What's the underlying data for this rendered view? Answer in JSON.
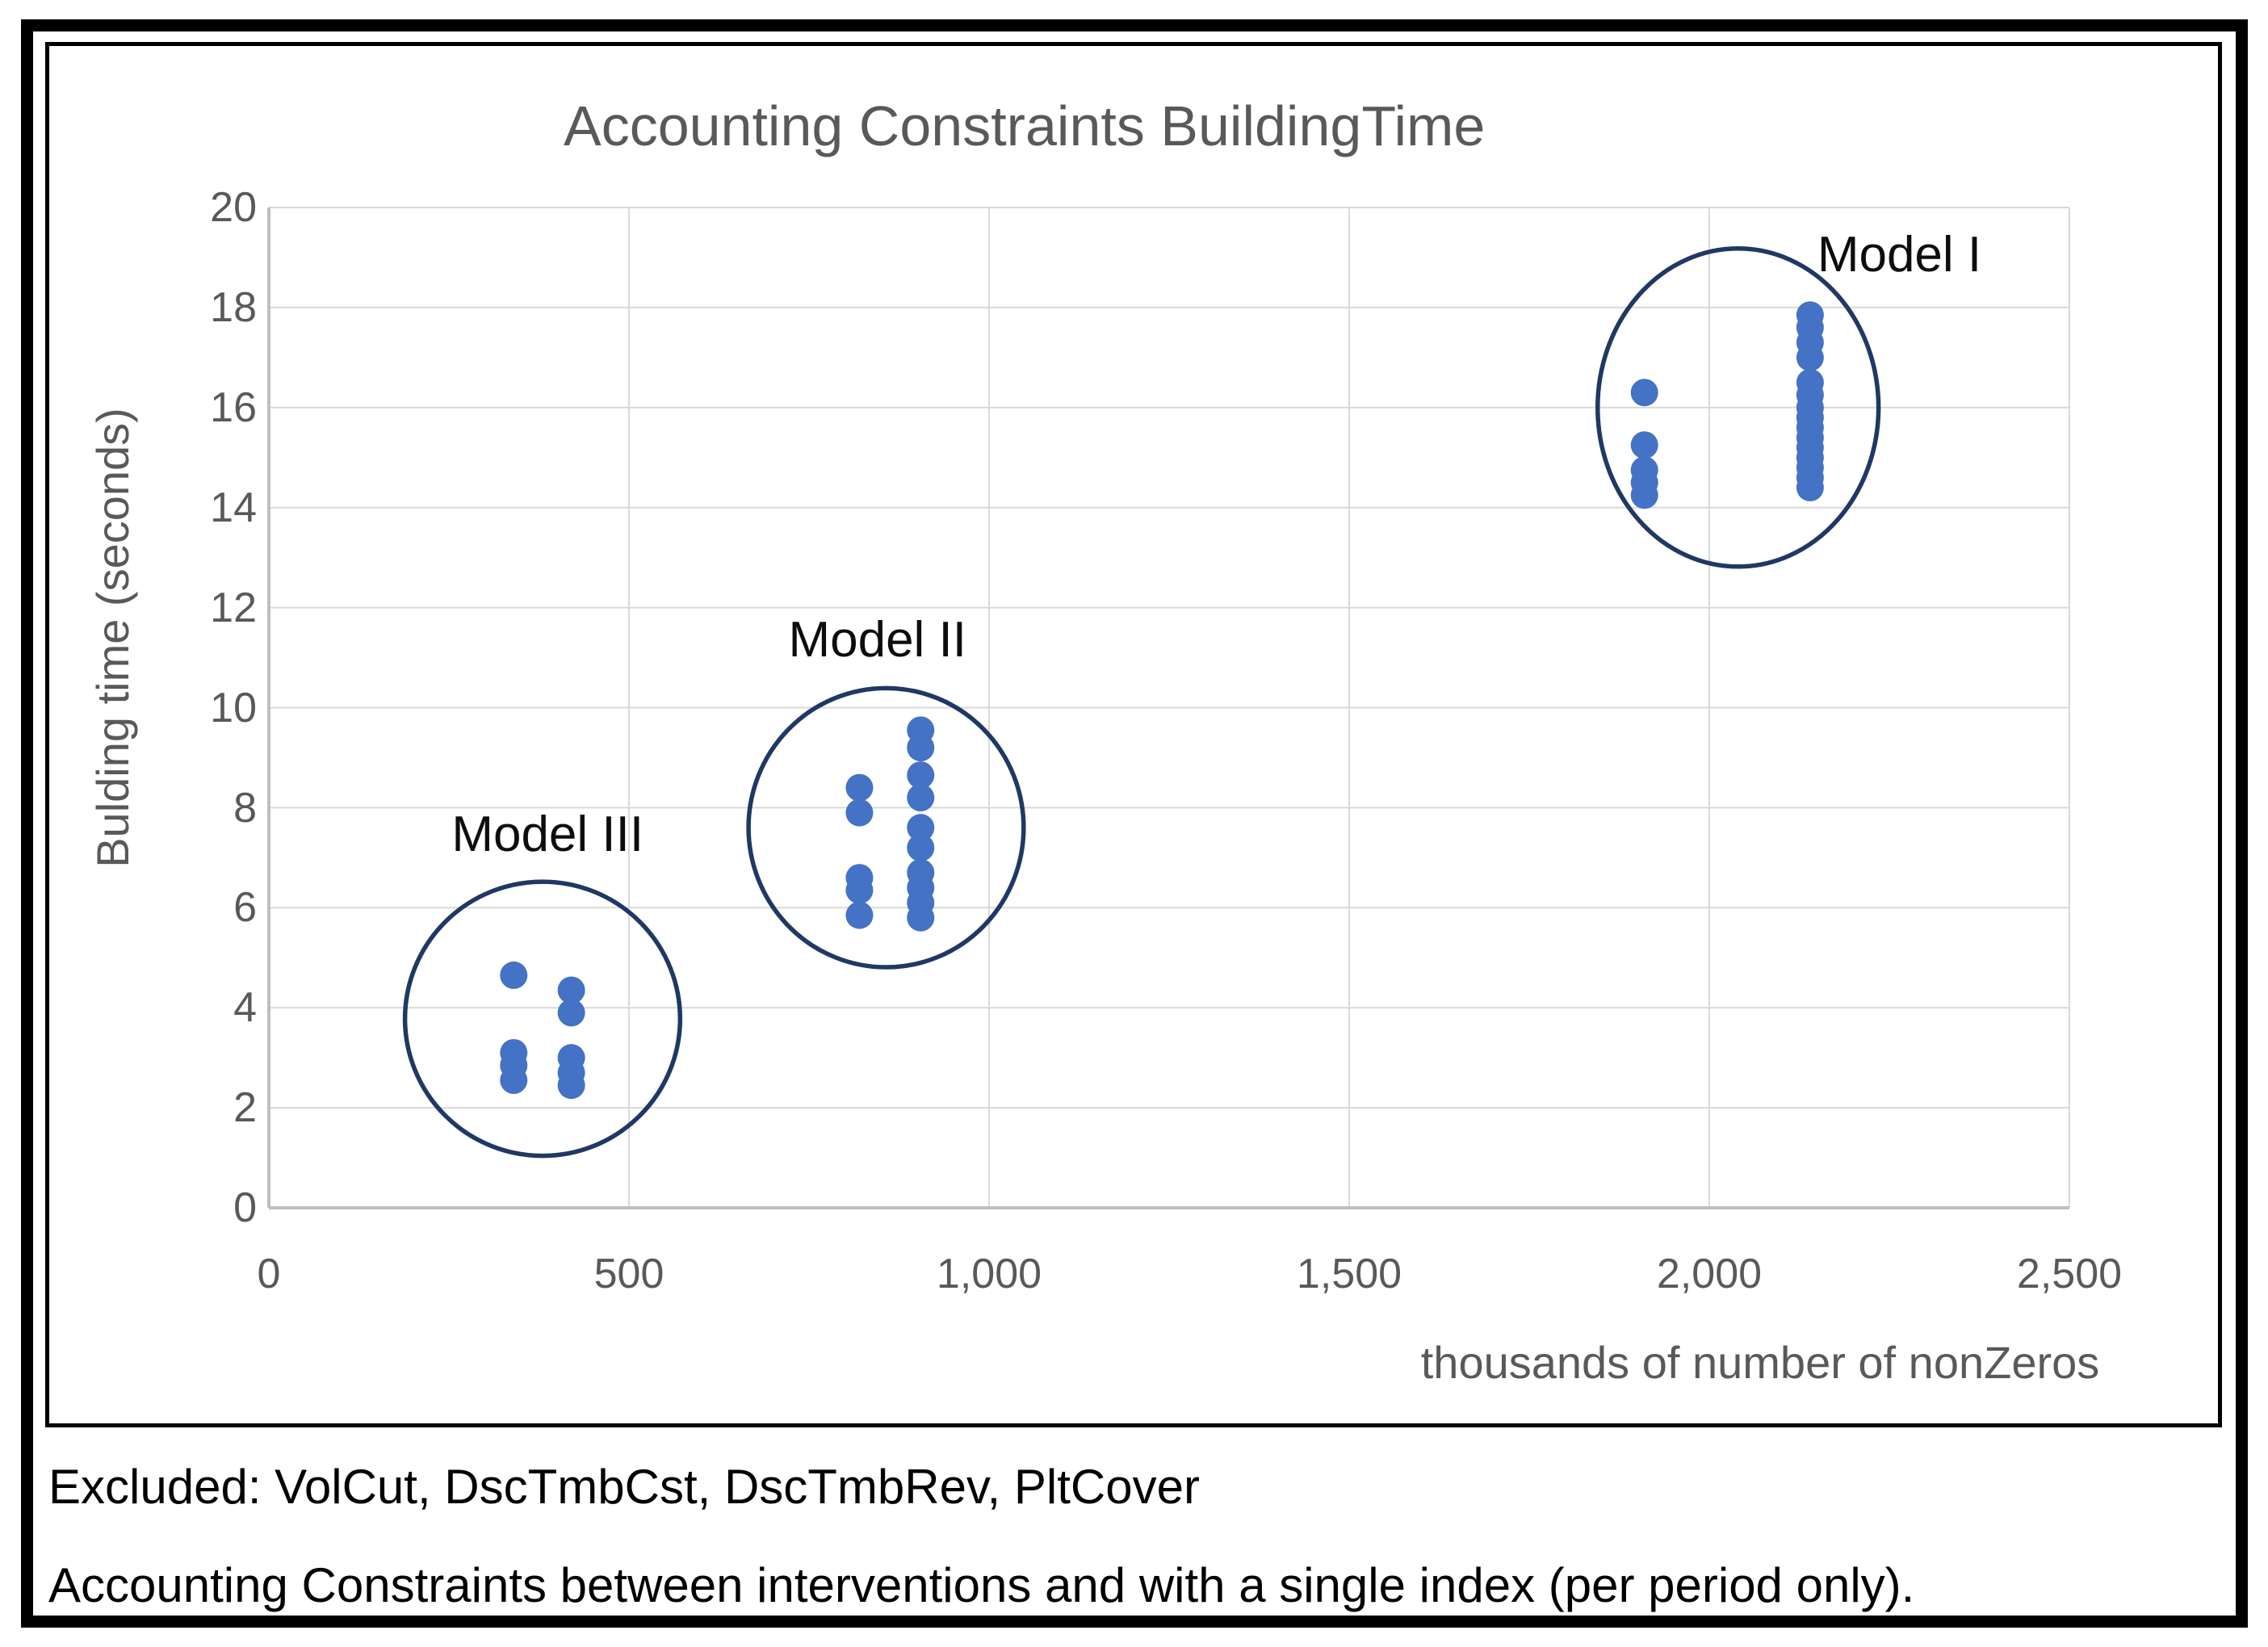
{
  "captions": {
    "line1": "Excluded: VolCut, DscTmbCst, DscTmbRev, PltCover",
    "line2": "Accounting Constraints between interventions and with a single index (per period only)."
  },
  "chart_data": {
    "type": "scatter",
    "title": "Accounting Constraints BuildingTime",
    "xlabel": "thousands of number of nonZeros",
    "ylabel": "Bulding time (seconds)",
    "xlim": [
      0,
      2500
    ],
    "ylim": [
      0,
      20
    ],
    "grid": true,
    "legend": "none",
    "xticks": [
      0,
      500,
      1000,
      1500,
      2000,
      2500
    ],
    "xtick_labels": [
      "0",
      "500",
      "1,000",
      "1,500",
      "2,000",
      "2,500"
    ],
    "yticks": [
      20,
      18,
      16,
      14,
      12,
      10,
      8,
      6,
      4,
      2,
      0
    ],
    "ytick_labels": [
      "20",
      "18",
      "16",
      "14",
      "12",
      "10",
      "8",
      "6",
      "4",
      "2",
      "0"
    ],
    "colors": {
      "point": "#4472C4",
      "annotation_circle": "#1F3864",
      "gridline": "#D9D9D9",
      "axis_line": "#BFBFBF",
      "title_text": "#595959",
      "label_text": "#0d0d0d"
    },
    "series": [
      {
        "name": "Model I",
        "points": [
          [
            1910,
            16.3
          ],
          [
            1910,
            15.25
          ],
          [
            1910,
            14.75
          ],
          [
            1910,
            14.5
          ],
          [
            1910,
            14.25
          ],
          [
            2140,
            17.85
          ],
          [
            2140,
            17.6
          ],
          [
            2140,
            17.3
          ],
          [
            2140,
            17.0
          ],
          [
            2140,
            16.5
          ],
          [
            2140,
            16.25
          ],
          [
            2140,
            16.0
          ],
          [
            2140,
            15.8
          ],
          [
            2140,
            15.6
          ],
          [
            2140,
            15.4
          ],
          [
            2140,
            15.2
          ],
          [
            2140,
            15.0
          ],
          [
            2140,
            14.8
          ],
          [
            2140,
            14.6
          ],
          [
            2140,
            14.4
          ]
        ]
      },
      {
        "name": "Model II",
        "points": [
          [
            820,
            8.4
          ],
          [
            820,
            7.9
          ],
          [
            820,
            6.6
          ],
          [
            820,
            6.35
          ],
          [
            820,
            5.85
          ],
          [
            905,
            9.55
          ],
          [
            905,
            9.2
          ],
          [
            905,
            8.65
          ],
          [
            905,
            8.2
          ],
          [
            905,
            7.6
          ],
          [
            905,
            7.2
          ],
          [
            905,
            6.7
          ],
          [
            905,
            6.4
          ],
          [
            905,
            6.1
          ],
          [
            905,
            5.8
          ]
        ]
      },
      {
        "name": "Model III",
        "points": [
          [
            340,
            4.65
          ],
          [
            340,
            3.1
          ],
          [
            340,
            2.85
          ],
          [
            340,
            2.55
          ],
          [
            420,
            4.35
          ],
          [
            420,
            3.9
          ],
          [
            420,
            3.0
          ],
          [
            420,
            2.7
          ],
          [
            420,
            2.45
          ]
        ]
      }
    ],
    "annotations": [
      {
        "label": "Model I",
        "circle": {
          "cx": 2040,
          "cy": 16.0,
          "rx": 195,
          "ry": 3.18
        },
        "label_pos": {
          "x": 2264,
          "y": 19.05
        }
      },
      {
        "label": "Model II",
        "circle": {
          "cx": 857,
          "cy": 7.6,
          "rx": 191,
          "ry": 2.79
        },
        "label_pos": {
          "x": 845,
          "y": 11.35
        }
      },
      {
        "label": "Model III",
        "circle": {
          "cx": 380,
          "cy": 3.78,
          "rx": 191,
          "ry": 2.74
        },
        "label_pos": {
          "x": 387,
          "y": 7.45
        }
      }
    ]
  }
}
